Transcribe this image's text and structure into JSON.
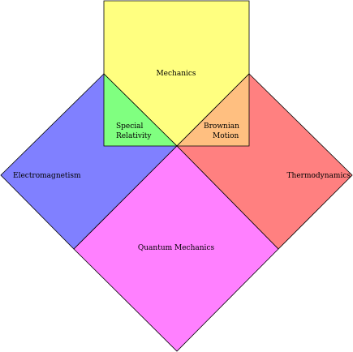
{
  "regions": {
    "mechanics": {
      "label": "Mechanics",
      "color": "#ffff80"
    },
    "electromagnetism": {
      "label": "Electromagnetism",
      "color": "#8080ff"
    },
    "thermodynamics": {
      "label": "Thermodynamics",
      "color": "#ff8080"
    },
    "quantum": {
      "label": "Quantum Mechanics",
      "color": "#ff80ff"
    },
    "special_relativity": {
      "label_lines": [
        "Special",
        "Relativity"
      ],
      "color": "#80ff80"
    },
    "brownian_motion": {
      "label_lines": [
        "Brownian",
        "Motion"
      ],
      "color": "#ffbf80"
    }
  },
  "outline_color": "#000000"
}
